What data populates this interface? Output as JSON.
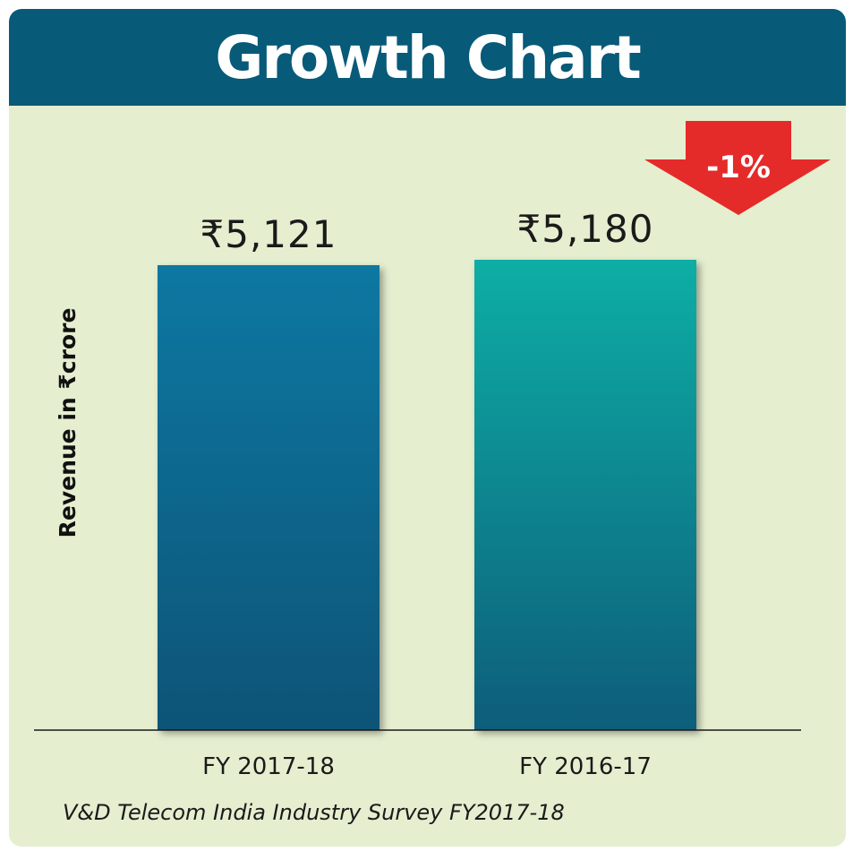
{
  "title": "Growth Chart",
  "change_label": "-1%",
  "source": "V&D Telecom India Industry Survey FY2017-18",
  "colors": {
    "title_bar": "#075a78",
    "background": "#e5eecf",
    "bar_fy2017_18": "#0b6c93",
    "bar_fy2016_17": "#0aa8a0",
    "arrow": "#e52a2a"
  },
  "chart_data": {
    "type": "bar",
    "title": "Growth Chart",
    "ylabel": "Revenue in ₹crore",
    "xlabel": "",
    "categories": [
      "FY 2017-18",
      "FY 2016-17"
    ],
    "values": [
      5121,
      5180
    ],
    "value_labels": [
      "₹5,121",
      "₹5,180"
    ],
    "grid": false,
    "legend": "none"
  }
}
